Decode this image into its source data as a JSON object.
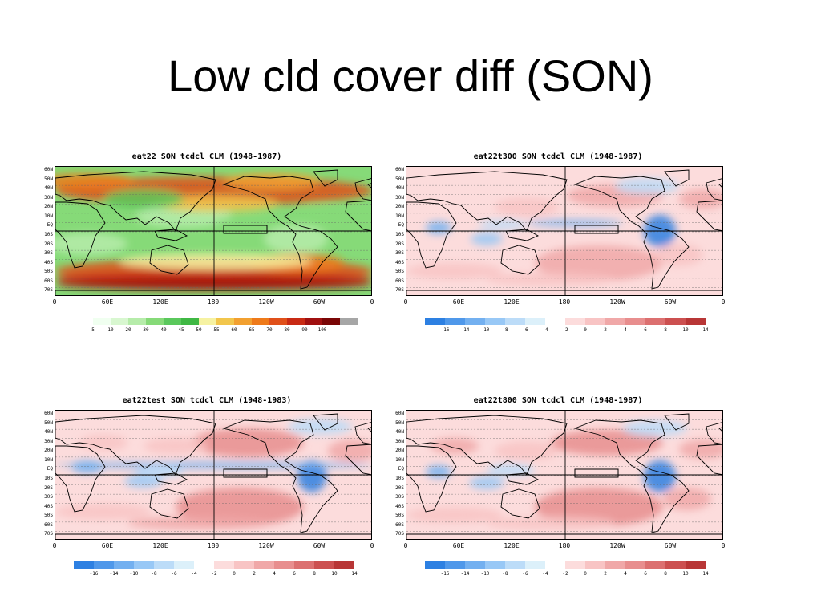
{
  "slide": {
    "title": "Low cld cover diff (SON)"
  },
  "lat_labels": [
    "60N",
    "50N",
    "40N",
    "30N",
    "20N",
    "10N",
    "EQ",
    "10S",
    "20S",
    "30S",
    "40S",
    "50S",
    "60S",
    "70S"
  ],
  "lon_labels": [
    "0",
    "60E",
    "120E",
    "180",
    "120W",
    "60W",
    "0"
  ],
  "palettes": {
    "absolute": {
      "colors": [
        "#f0fff0",
        "#d8f7d0",
        "#b6ecaa",
        "#86da78",
        "#5ac85c",
        "#3fb844",
        "#f6f2a2",
        "#f2c64c",
        "#f2a030",
        "#ee7a1a",
        "#e0501a",
        "#c82a14",
        "#a01010",
        "#7a0606",
        "#a6a6a6"
      ],
      "labels": [
        "5",
        "10",
        "20",
        "30",
        "40",
        "45",
        "50",
        "55",
        "60",
        "65",
        "70",
        "80",
        "90",
        "100"
      ]
    },
    "difference": {
      "colors": [
        "#2d80e2",
        "#4f98ea",
        "#73b0f0",
        "#98c8f6",
        "#bcdcf8",
        "#dcf0fa",
        "#ffffff",
        "#fcdcdc",
        "#f8c4c4",
        "#f0a8a8",
        "#e88e8e",
        "#dc7070",
        "#cc5050",
        "#b83636"
      ],
      "labels": [
        "-16",
        "-14",
        "-10",
        "-8",
        "-6",
        "-4",
        "-2",
        "0",
        "2",
        "4",
        "6",
        "8",
        "10",
        "14"
      ]
    }
  },
  "panels": [
    {
      "id": "tl",
      "title": "eat22 SON tcdcl CLM (1948-1987)",
      "palette": "absolute"
    },
    {
      "id": "tr",
      "title": "eat22t300 SON tcdcl CLM (1948-1987)",
      "palette": "difference"
    },
    {
      "id": "bl",
      "title": "eat22test SON tcdcl CLM (1948-1983)",
      "palette": "difference"
    },
    {
      "id": "br",
      "title": "eat22t800 SON tcdcl CLM (1948-1987)",
      "palette": "difference"
    }
  ]
}
